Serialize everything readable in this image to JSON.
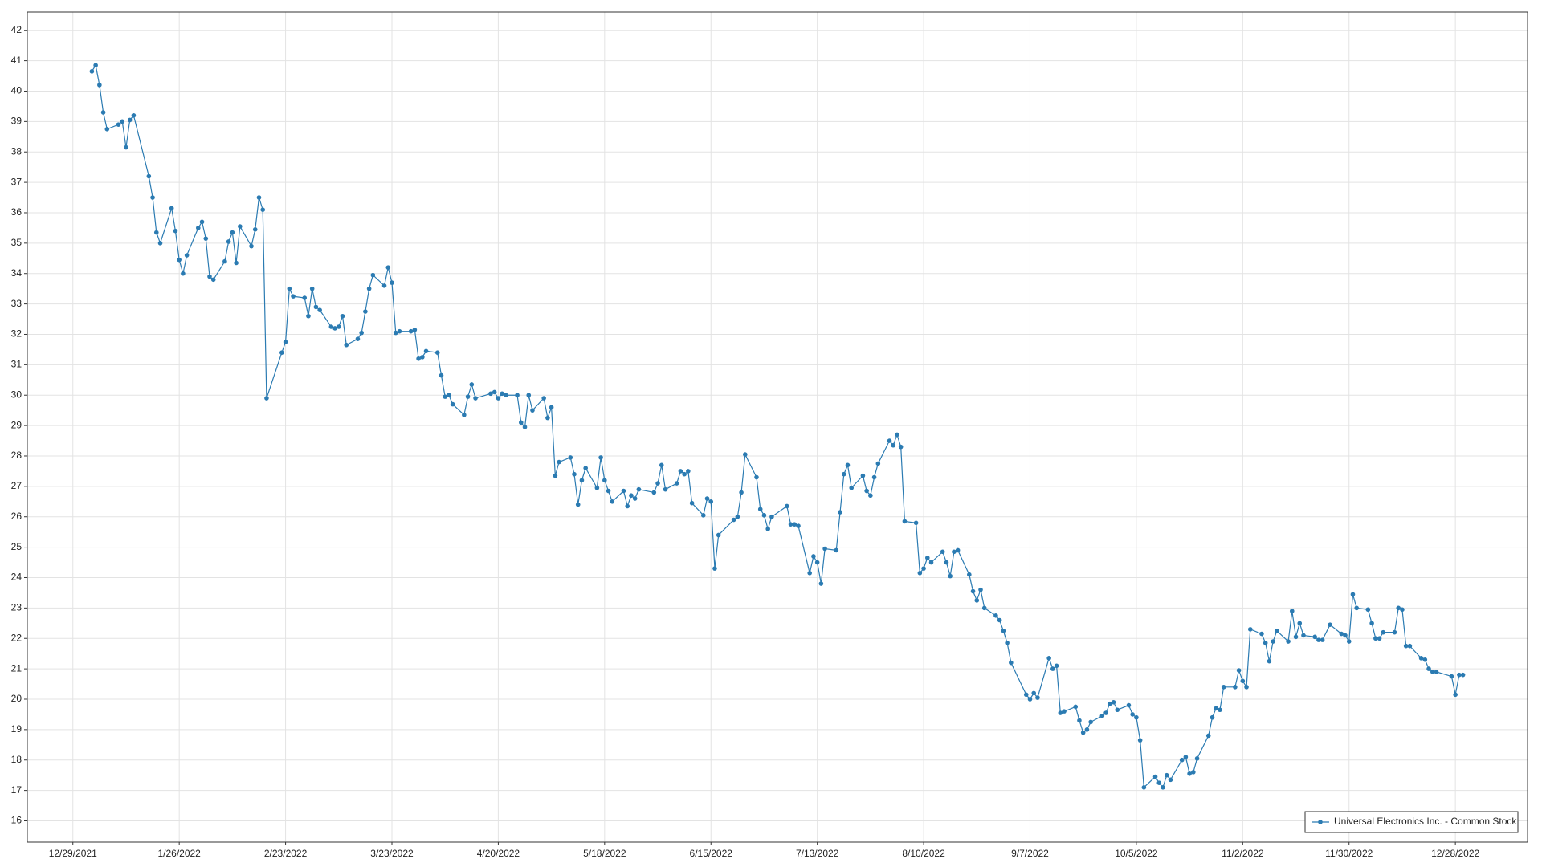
{
  "chart_data": {
    "type": "line",
    "x": [
      "1/3/2022",
      "1/4/2022",
      "1/5/2022",
      "1/6/2022",
      "1/7/2022",
      "1/10/2022",
      "1/11/2022",
      "1/12/2022",
      "1/13/2022",
      "1/14/2022",
      "1/18/2022",
      "1/19/2022",
      "1/20/2022",
      "1/21/2022",
      "1/24/2022",
      "1/25/2022",
      "1/26/2022",
      "1/27/2022",
      "1/28/2022",
      "1/31/2022",
      "2/1/2022",
      "2/2/2022",
      "2/3/2022",
      "2/4/2022",
      "2/7/2022",
      "2/8/2022",
      "2/9/2022",
      "2/10/2022",
      "2/11/2022",
      "2/14/2022",
      "2/15/2022",
      "2/16/2022",
      "2/17/2022",
      "2/18/2022",
      "2/22/2022",
      "2/23/2022",
      "2/24/2022",
      "2/25/2022",
      "2/28/2022",
      "3/1/2022",
      "3/2/2022",
      "3/3/2022",
      "3/4/2022",
      "3/7/2022",
      "3/8/2022",
      "3/9/2022",
      "3/10/2022",
      "3/11/2022",
      "3/14/2022",
      "3/15/2022",
      "3/16/2022",
      "3/17/2022",
      "3/18/2022",
      "3/21/2022",
      "3/22/2022",
      "3/23/2022",
      "3/24/2022",
      "3/25/2022",
      "3/28/2022",
      "3/29/2022",
      "3/30/2022",
      "3/31/2022",
      "4/1/2022",
      "4/4/2022",
      "4/5/2022",
      "4/6/2022",
      "4/7/2022",
      "4/8/2022",
      "4/11/2022",
      "4/12/2022",
      "4/13/2022",
      "4/14/2022",
      "4/18/2022",
      "4/19/2022",
      "4/20/2022",
      "4/21/2022",
      "4/22/2022",
      "4/25/2022",
      "4/26/2022",
      "4/27/2022",
      "4/28/2022",
      "4/29/2022",
      "5/2/2022",
      "5/3/2022",
      "5/4/2022",
      "5/5/2022",
      "5/6/2022",
      "5/9/2022",
      "5/10/2022",
      "5/11/2022",
      "5/12/2022",
      "5/13/2022",
      "5/16/2022",
      "5/17/2022",
      "5/18/2022",
      "5/19/2022",
      "5/20/2022",
      "5/23/2022",
      "5/24/2022",
      "5/25/2022",
      "5/26/2022",
      "5/27/2022",
      "5/31/2022",
      "6/1/2022",
      "6/2/2022",
      "6/3/2022",
      "6/6/2022",
      "6/7/2022",
      "6/8/2022",
      "6/9/2022",
      "6/10/2022",
      "6/13/2022",
      "6/14/2022",
      "6/15/2022",
      "6/16/2022",
      "6/17/2022",
      "6/21/2022",
      "6/22/2022",
      "6/23/2022",
      "6/24/2022",
      "6/27/2022",
      "6/28/2022",
      "6/29/2022",
      "6/30/2022",
      "7/1/2022",
      "7/5/2022",
      "7/6/2022",
      "7/7/2022",
      "7/8/2022",
      "7/11/2022",
      "7/12/2022",
      "7/13/2022",
      "7/14/2022",
      "7/15/2022",
      "7/18/2022",
      "7/19/2022",
      "7/20/2022",
      "7/21/2022",
      "7/22/2022",
      "7/25/2022",
      "7/26/2022",
      "7/27/2022",
      "7/28/2022",
      "7/29/2022",
      "8/1/2022",
      "8/2/2022",
      "8/3/2022",
      "8/4/2022",
      "8/5/2022",
      "8/8/2022",
      "8/9/2022",
      "8/10/2022",
      "8/11/2022",
      "8/12/2022",
      "8/15/2022",
      "8/16/2022",
      "8/17/2022",
      "8/18/2022",
      "8/19/2022",
      "8/22/2022",
      "8/23/2022",
      "8/24/2022",
      "8/25/2022",
      "8/26/2022",
      "8/29/2022",
      "8/30/2022",
      "8/31/2022",
      "9/1/2022",
      "9/2/2022",
      "9/6/2022",
      "9/7/2022",
      "9/8/2022",
      "9/9/2022",
      "9/12/2022",
      "9/13/2022",
      "9/14/2022",
      "9/15/2022",
      "9/16/2022",
      "9/19/2022",
      "9/20/2022",
      "9/21/2022",
      "9/22/2022",
      "9/23/2022",
      "9/26/2022",
      "9/27/2022",
      "9/28/2022",
      "9/29/2022",
      "9/30/2022",
      "10/3/2022",
      "10/4/2022",
      "10/5/2022",
      "10/6/2022",
      "10/7/2022",
      "10/10/2022",
      "10/11/2022",
      "10/12/2022",
      "10/13/2022",
      "10/14/2022",
      "10/17/2022",
      "10/18/2022",
      "10/19/2022",
      "10/20/2022",
      "10/21/2022",
      "10/24/2022",
      "10/25/2022",
      "10/26/2022",
      "10/27/2022",
      "10/28/2022",
      "10/31/2022",
      "11/1/2022",
      "11/2/2022",
      "11/3/2022",
      "11/4/2022",
      "11/7/2022",
      "11/8/2022",
      "11/9/2022",
      "11/10/2022",
      "11/11/2022",
      "11/14/2022",
      "11/15/2022",
      "11/16/2022",
      "11/17/2022",
      "11/18/2022",
      "11/21/2022",
      "11/22/2022",
      "11/23/2022",
      "11/25/2022",
      "11/28/2022",
      "11/29/2022",
      "11/30/2022",
      "12/1/2022",
      "12/2/2022",
      "12/5/2022",
      "12/6/2022",
      "12/7/2022",
      "12/8/2022",
      "12/9/2022",
      "12/12/2022",
      "12/13/2022",
      "12/14/2022",
      "12/15/2022",
      "12/16/2022",
      "12/19/2022",
      "12/20/2022",
      "12/21/2022",
      "12/22/2022",
      "12/23/2022",
      "12/27/2022",
      "12/28/2022",
      "12/29/2022",
      "12/30/2022"
    ],
    "series": [
      {
        "name": "Universal Electronics Inc. - Common Stock",
        "color": "#2b7bb2",
        "values": [
          40.65,
          40.85,
          40.2,
          39.3,
          38.75,
          38.9,
          39.0,
          38.15,
          39.05,
          39.2,
          37.2,
          36.5,
          35.35,
          35.0,
          36.15,
          35.4,
          34.45,
          34.0,
          34.6,
          35.5,
          35.7,
          35.15,
          33.9,
          33.8,
          34.4,
          35.05,
          35.35,
          34.35,
          35.55,
          34.9,
          35.45,
          36.5,
          36.1,
          29.9,
          31.4,
          31.75,
          33.5,
          33.25,
          33.2,
          32.6,
          33.5,
          32.9,
          32.8,
          32.25,
          32.2,
          32.25,
          32.6,
          31.65,
          31.85,
          32.05,
          32.75,
          33.5,
          33.95,
          33.6,
          34.2,
          33.7,
          32.05,
          32.1,
          32.1,
          32.15,
          31.2,
          31.25,
          31.45,
          31.4,
          30.65,
          29.95,
          30.0,
          29.7,
          29.35,
          29.95,
          30.35,
          29.9,
          30.05,
          30.1,
          29.9,
          30.05,
          30.0,
          30.0,
          29.1,
          28.95,
          30.0,
          29.5,
          29.9,
          29.25,
          29.6,
          27.35,
          27.8,
          27.95,
          27.4,
          26.4,
          27.2,
          27.6,
          26.95,
          27.95,
          27.2,
          26.85,
          26.5,
          26.85,
          26.35,
          26.7,
          26.6,
          26.9,
          26.8,
          27.1,
          27.7,
          26.9,
          27.1,
          27.5,
          27.4,
          27.5,
          26.45,
          26.05,
          26.6,
          26.5,
          24.3,
          25.4,
          25.9,
          26.0,
          26.8,
          28.05,
          27.3,
          26.25,
          26.05,
          25.6,
          26.0,
          26.35,
          25.75,
          25.75,
          25.7,
          24.15,
          24.7,
          24.5,
          23.8,
          24.95,
          24.9,
          26.15,
          27.4,
          27.7,
          26.95,
          27.35,
          26.85,
          26.7,
          27.3,
          27.75,
          28.5,
          28.35,
          28.7,
          28.3,
          25.85,
          25.8,
          24.15,
          24.3,
          24.65,
          24.5,
          24.85,
          24.5,
          24.05,
          24.85,
          24.9,
          24.1,
          23.55,
          23.25,
          23.6,
          23.0,
          22.75,
          22.6,
          22.25,
          21.85,
          21.2,
          20.15,
          20.0,
          20.2,
          20.05,
          21.35,
          21.0,
          21.1,
          19.55,
          19.6,
          19.75,
          19.3,
          18.9,
          19.0,
          19.25,
          19.45,
          19.55,
          19.85,
          19.9,
          19.65,
          19.8,
          19.5,
          19.4,
          18.65,
          17.1,
          17.45,
          17.25,
          17.1,
          17.5,
          17.35,
          18.0,
          18.1,
          17.55,
          17.6,
          18.05,
          18.8,
          19.4,
          19.7,
          19.65,
          20.4,
          20.4,
          20.95,
          20.6,
          20.4,
          22.3,
          22.15,
          21.85,
          21.25,
          21.9,
          22.25,
          21.9,
          22.9,
          22.05,
          22.5,
          22.1,
          22.05,
          21.95,
          21.95,
          22.45,
          22.15,
          22.1,
          21.9,
          23.45,
          23.0,
          22.95,
          22.5,
          22.0,
          22.0,
          22.2,
          22.2,
          23.0,
          22.95,
          21.75,
          21.75,
          21.35,
          21.3,
          21.0,
          20.9,
          20.9,
          20.75,
          20.15,
          20.8,
          20.8
        ]
      }
    ],
    "xlim": [
      "12/17/2021",
      "1/16/2023"
    ],
    "xticks": [
      "12/29/2021",
      "1/26/2022",
      "2/23/2022",
      "3/23/2022",
      "4/20/2022",
      "5/18/2022",
      "6/15/2022",
      "7/13/2022",
      "8/10/2022",
      "9/7/2022",
      "10/5/2022",
      "11/2/2022",
      "11/30/2022",
      "12/28/2022"
    ],
    "ylim": [
      15.3,
      42.6
    ],
    "yticks": [
      16,
      17,
      18,
      19,
      20,
      21,
      22,
      23,
      24,
      25,
      26,
      27,
      28,
      29,
      30,
      31,
      32,
      33,
      34,
      35,
      36,
      37,
      38,
      39,
      40,
      41,
      42
    ],
    "grid": true,
    "legend": "lower right"
  }
}
